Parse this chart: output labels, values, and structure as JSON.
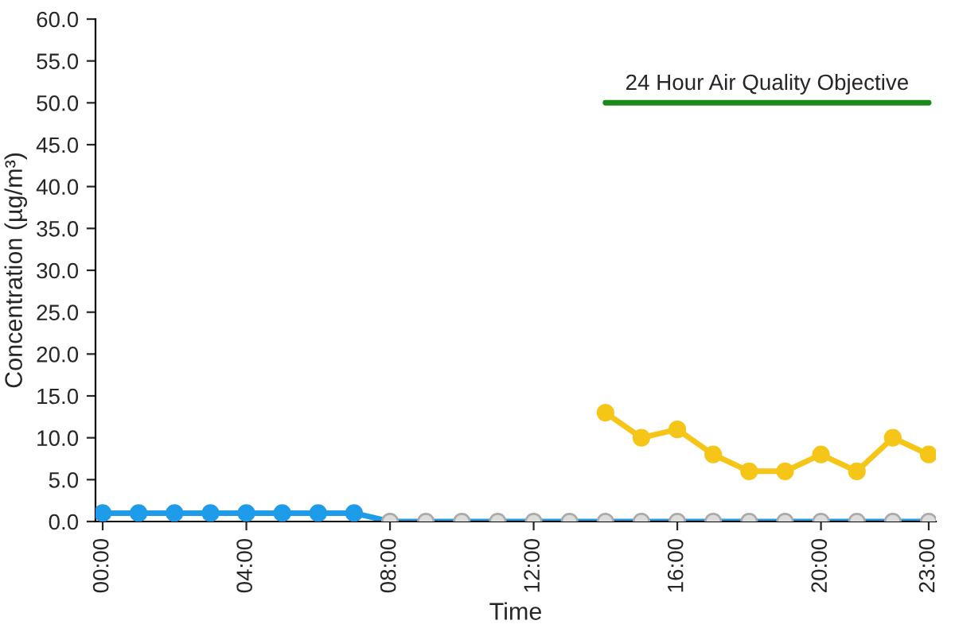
{
  "chart_data": {
    "type": "line",
    "xlabel": "Time",
    "ylabel": "Concentration (µg/m³)",
    "categories": [
      "00:00",
      null,
      null,
      null,
      "04:00",
      null,
      null,
      null,
      "08:00",
      null,
      null,
      null,
      "12:00",
      null,
      null,
      null,
      "16:00",
      null,
      null,
      null,
      "20:00",
      null,
      null,
      "23:00"
    ],
    "series": [
      {
        "color": "#1e9be9",
        "values": [
          1,
          1,
          1,
          1,
          1,
          1,
          1,
          1,
          0,
          0,
          0,
          0,
          0,
          0,
          0,
          0,
          0,
          0,
          0,
          0,
          0,
          0,
          0,
          0
        ],
        "colors": [
          "#1e9be9",
          "#1e9be9",
          "#1e9be9",
          "#1e9be9",
          "#1e9be9",
          "#1e9be9",
          "#1e9be9",
          "#1e9be9",
          "#dcdcdc",
          "#dcdcdc",
          "#dcdcdc",
          "#dcdcdc",
          "#dcdcdc",
          "#dcdcdc",
          "#dcdcdc",
          "#dcdcdc",
          "#dcdcdc",
          "#dcdcdc",
          "#dcdcdc",
          "#dcdcdc",
          "#dcdcdc",
          "#dcdcdc",
          "#dcdcdc",
          "#dcdcdc"
        ]
      },
      {
        "color": "#f5c518",
        "values": [
          null,
          null,
          null,
          null,
          null,
          null,
          null,
          null,
          null,
          null,
          null,
          null,
          null,
          null,
          13,
          10,
          11,
          8,
          6,
          6,
          8,
          6,
          10,
          8
        ]
      },
      {
        "name": "24 Hour Air Quality Objective",
        "color": "#1a8a1a",
        "marker": "none",
        "values": [
          null,
          null,
          null,
          null,
          null,
          null,
          null,
          null,
          null,
          null,
          null,
          null,
          null,
          null,
          50,
          50,
          50,
          50,
          50,
          50,
          50,
          50,
          50,
          50
        ]
      }
    ],
    "ylim": [
      0,
      60
    ],
    "yticks": [
      {
        "value": 0,
        "label": "0.0"
      },
      {
        "value": 5,
        "label": "5.0"
      },
      {
        "value": 10,
        "label": "10.0"
      },
      {
        "value": 15,
        "label": "15.0"
      },
      {
        "value": 20,
        "label": "20.0"
      },
      {
        "value": 25,
        "label": "25.0"
      },
      {
        "value": 30,
        "label": "30.0"
      },
      {
        "value": 35,
        "label": "35.0"
      },
      {
        "value": 40,
        "label": "40.0"
      },
      {
        "value": 45,
        "label": "45.0"
      },
      {
        "value": 50,
        "label": "50.0"
      },
      {
        "value": 55,
        "label": "55.0"
      },
      {
        "value": 60,
        "label": "60.0"
      }
    ],
    "marker": "circle",
    "grid": false,
    "legend": false
  }
}
